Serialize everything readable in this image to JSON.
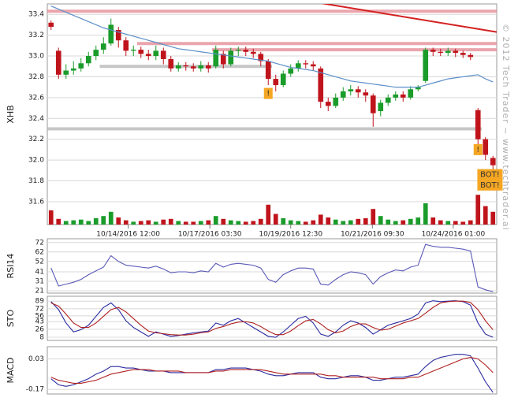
{
  "chart_data": [
    {
      "type": "candlestick",
      "y_label": "XHB",
      "watermark": "© 2012 Tech Trader ~ www.techtrader.ai",
      "up_color": "#1a9c2a",
      "down_color": "#c0141c",
      "open": [
        33.32,
        33.05,
        32.82,
        32.86,
        32.88,
        32.93,
        33.0,
        33.06,
        33.12,
        33.25,
        33.15,
        33.05,
        33.06,
        33.02,
        33.0,
        33.05,
        32.97,
        32.88,
        32.91,
        32.9,
        32.88,
        32.91,
        32.9,
        33.02,
        32.92,
        33.05,
        33.06,
        33.04,
        33.02,
        32.95,
        32.78,
        32.72,
        32.83,
        32.88,
        32.93,
        32.92,
        32.88,
        32.56,
        32.52,
        32.6,
        32.66,
        32.68,
        32.65,
        32.62,
        32.47,
        32.55,
        32.6,
        32.63,
        32.6,
        32.68,
        32.76,
        33.06,
        33.04,
        33.03,
        33.05,
        33.03,
        33.01,
        32.48,
        32.2,
        32.02
      ],
      "high": [
        33.34,
        33.08,
        32.92,
        32.95,
        32.98,
        33.04,
        33.1,
        33.18,
        33.36,
        33.28,
        33.18,
        33.1,
        33.09,
        33.06,
        33.1,
        33.08,
        33.0,
        32.94,
        32.94,
        32.93,
        32.95,
        32.94,
        33.1,
        33.05,
        33.08,
        33.09,
        33.09,
        33.07,
        33.04,
        32.97,
        32.82,
        32.86,
        32.92,
        32.96,
        32.96,
        32.95,
        32.9,
        32.6,
        32.64,
        32.7,
        32.72,
        32.71,
        32.68,
        32.64,
        32.58,
        32.63,
        32.66,
        32.66,
        32.71,
        32.72,
        33.08,
        33.08,
        33.07,
        33.08,
        33.07,
        33.05,
        33.03,
        32.5,
        32.22,
        32.04
      ],
      "low": [
        33.25,
        32.78,
        32.78,
        32.82,
        32.85,
        32.9,
        32.96,
        33.02,
        33.1,
        33.08,
        33.0,
        33.0,
        32.98,
        32.96,
        32.96,
        32.92,
        32.85,
        32.85,
        32.86,
        32.85,
        32.85,
        32.84,
        32.88,
        32.88,
        32.9,
        33.0,
        33.0,
        32.98,
        32.9,
        32.72,
        32.66,
        32.7,
        32.8,
        32.85,
        32.88,
        32.86,
        32.5,
        32.47,
        32.5,
        32.57,
        32.62,
        32.6,
        32.56,
        32.32,
        32.42,
        32.52,
        32.57,
        32.56,
        32.58,
        32.66,
        32.74,
        33.0,
        33.0,
        33.0,
        32.99,
        32.98,
        32.96,
        32.15,
        32.0,
        31.9
      ],
      "close": [
        33.28,
        32.82,
        32.86,
        32.88,
        32.93,
        33.0,
        33.06,
        33.12,
        33.3,
        33.15,
        33.05,
        33.06,
        33.02,
        33.0,
        33.05,
        32.97,
        32.88,
        32.91,
        32.9,
        32.88,
        32.91,
        32.88,
        33.06,
        32.92,
        33.05,
        33.06,
        33.04,
        33.02,
        32.95,
        32.78,
        32.72,
        32.83,
        32.88,
        32.93,
        32.92,
        32.9,
        32.56,
        32.52,
        32.6,
        32.66,
        32.68,
        32.65,
        32.62,
        32.45,
        32.55,
        32.6,
        32.63,
        32.6,
        32.68,
        32.7,
        33.06,
        33.04,
        33.03,
        33.05,
        33.03,
        33.01,
        32.99,
        32.2,
        32.05,
        31.95
      ],
      "ma": {
        "color": "#5b8fc7",
        "values": [
          33.48,
          33.45,
          33.42,
          33.39,
          33.36,
          33.33,
          33.3,
          33.27,
          33.25,
          33.23,
          33.21,
          33.19,
          33.17,
          33.15,
          33.13,
          33.11,
          33.09,
          33.07,
          33.06,
          33.05,
          33.04,
          33.03,
          33.02,
          33.01,
          33.0,
          32.99,
          32.98,
          32.97,
          32.96,
          32.95,
          32.93,
          32.91,
          32.89,
          32.88,
          32.87,
          32.86,
          32.84,
          32.82,
          32.8,
          32.78,
          32.76,
          32.75,
          32.74,
          32.73,
          32.72,
          32.71,
          32.7,
          32.7,
          32.7,
          32.7,
          32.72,
          32.74,
          32.76,
          32.78,
          32.79,
          32.8,
          32.81,
          32.82,
          32.78,
          32.75
        ]
      },
      "levels": [
        {
          "value": 33.43,
          "from": 0,
          "color": "#e58f98"
        },
        {
          "value": 33.12,
          "from": 12,
          "color": "#e58f98"
        },
        {
          "value": 33.06,
          "from": 22,
          "color": "#e58f98"
        },
        {
          "value": 32.9,
          "from": 7,
          "to": 29,
          "color": "#b8b8b8"
        },
        {
          "value": 32.3,
          "from": 0,
          "to": 57,
          "color": "#b8b8b8"
        }
      ],
      "trendline": {
        "color": "#d42020",
        "x": [
          35,
          59.5
        ],
        "y": [
          33.52,
          33.23
        ]
      },
      "annotations": [
        {
          "text": "!",
          "x": 29,
          "y": 32.64
        },
        {
          "text": "!",
          "x": 57,
          "y": 32.1
        },
        {
          "text": "BOT!",
          "x": 58.6,
          "y": 31.86
        },
        {
          "text": "BOT!",
          "x": 58.6,
          "y": 31.76
        }
      ],
      "annotation_color": "#f5a623",
      "ylim": [
        31.38,
        33.5
      ],
      "yticks": [
        {
          "value": 33.4,
          "label": "33.4"
        },
        {
          "value": 33.2,
          "label": "33.2"
        },
        {
          "value": 33,
          "label": "33.0"
        },
        {
          "value": 32.8,
          "label": "32.8"
        },
        {
          "value": 32.6,
          "label": "32.6"
        },
        {
          "value": 32.4,
          "label": "32.4"
        },
        {
          "value": 32.2,
          "label": "32.2"
        },
        {
          "value": 32,
          "label": "32.0"
        },
        {
          "value": 31.8,
          "label": "31.8"
        },
        {
          "value": 31.6,
          "label": "31.6"
        }
      ],
      "xticks": [
        {
          "value": 10.3,
          "label": "10/14/2016 12:00"
        },
        {
          "value": 21.2,
          "label": "10/17/2016 03:30"
        },
        {
          "value": 32,
          "label": "10/19/2016 12:30"
        },
        {
          "value": 42.9,
          "label": "10/21/2016 09:30"
        },
        {
          "value": 53.7,
          "label": "10/24/2016 01:00"
        }
      ],
      "grid": true
    },
    {
      "type": "volume",
      "ylim": [
        0,
        50
      ],
      "values": [
        20,
        8,
        5,
        6,
        7,
        5,
        9,
        12,
        18,
        10,
        6,
        4,
        5,
        6,
        4,
        7,
        8,
        5,
        4,
        4,
        5,
        6,
        12,
        8,
        6,
        5,
        4,
        5,
        8,
        28,
        15,
        9,
        6,
        5,
        4,
        6,
        14,
        10,
        7,
        5,
        6,
        8,
        9,
        22,
        12,
        7,
        5,
        6,
        8,
        10,
        30,
        10,
        6,
        5,
        5,
        4,
        6,
        42,
        26,
        18
      ]
    },
    {
      "type": "line",
      "y_label": "RSI14",
      "ylim": [
        18.5,
        76
      ],
      "yticks": [
        72,
        62,
        52,
        41,
        31,
        21
      ],
      "grid": true,
      "series": [
        {
          "color": "#5a5ab8",
          "values": [
            45,
            26,
            28,
            30,
            33,
            38,
            42,
            46,
            58,
            52,
            48,
            47,
            46,
            45,
            47,
            44,
            40,
            41,
            41,
            40,
            42,
            41,
            50,
            46,
            49,
            50,
            49,
            48,
            45,
            33,
            30,
            38,
            42,
            45,
            45,
            44,
            28,
            27,
            33,
            38,
            41,
            40,
            38,
            28,
            36,
            40,
            43,
            42,
            46,
            48,
            70,
            68,
            67,
            67,
            66,
            65,
            63,
            25,
            22,
            20
          ]
        }
      ]
    },
    {
      "type": "line",
      "y_label": "STO",
      "ylim": [
        1,
        100
      ],
      "yticks": [
        89,
        72,
        56,
        43,
        26,
        8
      ],
      "grid": true,
      "series": [
        {
          "color": "#2a2aa0",
          "values": [
            88,
            70,
            40,
            20,
            25,
            35,
            55,
            75,
            85,
            70,
            45,
            30,
            20,
            10,
            20,
            15,
            10,
            12,
            15,
            18,
            20,
            22,
            40,
            35,
            45,
            50,
            40,
            30,
            20,
            10,
            8,
            20,
            35,
            50,
            55,
            40,
            15,
            10,
            20,
            35,
            45,
            40,
            30,
            15,
            25,
            35,
            40,
            45,
            50,
            60,
            85,
            90,
            88,
            89,
            90,
            88,
            80,
            40,
            15,
            8
          ]
        },
        {
          "color": "#b02020",
          "values": [
            85,
            78,
            60,
            40,
            30,
            30,
            40,
            55,
            70,
            75,
            65,
            50,
            35,
            22,
            18,
            16,
            14,
            13,
            13,
            15,
            18,
            20,
            28,
            32,
            38,
            42,
            43,
            40,
            32,
            22,
            14,
            14,
            22,
            34,
            45,
            48,
            38,
            25,
            18,
            22,
            32,
            38,
            38,
            30,
            24,
            26,
            33,
            40,
            45,
            50,
            62,
            75,
            85,
            88,
            89,
            89,
            86,
            70,
            45,
            25
          ]
        }
      ]
    },
    {
      "type": "line",
      "y_label": "MACD",
      "ylim": [
        -0.2,
        0.11
      ],
      "yticks": [
        0.03,
        -0.17
      ],
      "grid": true,
      "series": [
        {
          "color": "#2a2aa0",
          "values": [
            -0.1,
            -0.14,
            -0.15,
            -0.14,
            -0.12,
            -0.1,
            -0.07,
            -0.05,
            -0.02,
            -0.02,
            -0.03,
            -0.03,
            -0.04,
            -0.05,
            -0.05,
            -0.05,
            -0.06,
            -0.06,
            -0.06,
            -0.06,
            -0.06,
            -0.06,
            -0.04,
            -0.04,
            -0.03,
            -0.03,
            -0.03,
            -0.04,
            -0.05,
            -0.07,
            -0.08,
            -0.08,
            -0.07,
            -0.06,
            -0.06,
            -0.06,
            -0.09,
            -0.1,
            -0.1,
            -0.09,
            -0.08,
            -0.08,
            -0.09,
            -0.11,
            -0.11,
            -0.1,
            -0.09,
            -0.09,
            -0.08,
            -0.07,
            -0.02,
            0.02,
            0.04,
            0.05,
            0.06,
            0.06,
            0.05,
            -0.03,
            -0.12,
            -0.19
          ]
        },
        {
          "color": "#b02020",
          "values": [
            -0.09,
            -0.11,
            -0.12,
            -0.13,
            -0.13,
            -0.12,
            -0.11,
            -0.09,
            -0.07,
            -0.06,
            -0.05,
            -0.04,
            -0.04,
            -0.04,
            -0.05,
            -0.05,
            -0.05,
            -0.05,
            -0.06,
            -0.06,
            -0.06,
            -0.06,
            -0.05,
            -0.05,
            -0.04,
            -0.04,
            -0.04,
            -0.04,
            -0.04,
            -0.05,
            -0.06,
            -0.07,
            -0.07,
            -0.07,
            -0.07,
            -0.07,
            -0.07,
            -0.08,
            -0.08,
            -0.09,
            -0.09,
            -0.09,
            -0.09,
            -0.09,
            -0.1,
            -0.1,
            -0.1,
            -0.1,
            -0.09,
            -0.09,
            -0.07,
            -0.05,
            -0.03,
            -0.01,
            0.01,
            0.03,
            0.04,
            0.03,
            -0.01,
            -0.06
          ]
        }
      ]
    }
  ]
}
